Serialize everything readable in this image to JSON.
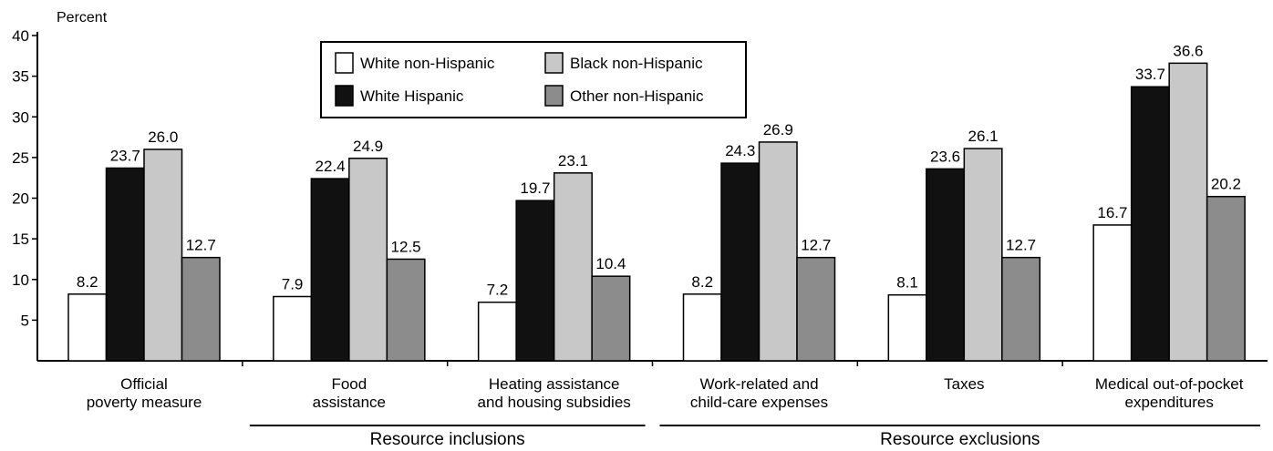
{
  "chart_data": {
    "type": "bar",
    "ylabel": "Percent",
    "ylim": [
      0,
      40
    ],
    "yticks": [
      5,
      10,
      15,
      20,
      25,
      30,
      35,
      40
    ],
    "categories": [
      [
        "Official",
        "poverty measure"
      ],
      [
        "Food",
        "assistance"
      ],
      [
        "Heating assistance",
        "and housing subsidies"
      ],
      [
        "Work-related and",
        "child-care expenses"
      ],
      [
        "Taxes"
      ],
      [
        "Medical out-of-pocket",
        "expenditures"
      ]
    ],
    "series": [
      {
        "name": "White non-Hispanic",
        "color": "#ffffff",
        "values": [
          8.2,
          7.9,
          7.2,
          8.2,
          8.1,
          16.7
        ],
        "labels": [
          "8.2",
          "7.9",
          "7.2",
          "8.2",
          "8.1",
          "16.7"
        ]
      },
      {
        "name": "White Hispanic",
        "color": "#111111",
        "values": [
          23.7,
          22.4,
          19.7,
          24.3,
          23.6,
          33.7
        ],
        "labels": [
          "23.7",
          "22.4",
          "19.7",
          "24.3",
          "23.6",
          "33.7"
        ]
      },
      {
        "name": "Black non-Hispanic",
        "color": "#c8c8c8",
        "values": [
          26.0,
          24.9,
          23.1,
          26.9,
          26.1,
          36.6
        ],
        "labels": [
          "26.0",
          "24.9",
          "23.1",
          "26.9",
          "26.1",
          "36.6"
        ]
      },
      {
        "name": "Other non-Hispanic",
        "color": "#8c8c8c",
        "values": [
          12.7,
          12.5,
          10.4,
          12.7,
          12.7,
          20.2
        ],
        "labels": [
          "12.7",
          "12.5",
          "10.4",
          "12.7",
          "12.7",
          "20.2"
        ]
      }
    ],
    "groups": [
      {
        "label": "Resource inclusions",
        "from": 1,
        "to": 2
      },
      {
        "label": "Resource exclusions",
        "from": 3,
        "to": 5
      }
    ],
    "legend": "top-center",
    "grid": false
  }
}
